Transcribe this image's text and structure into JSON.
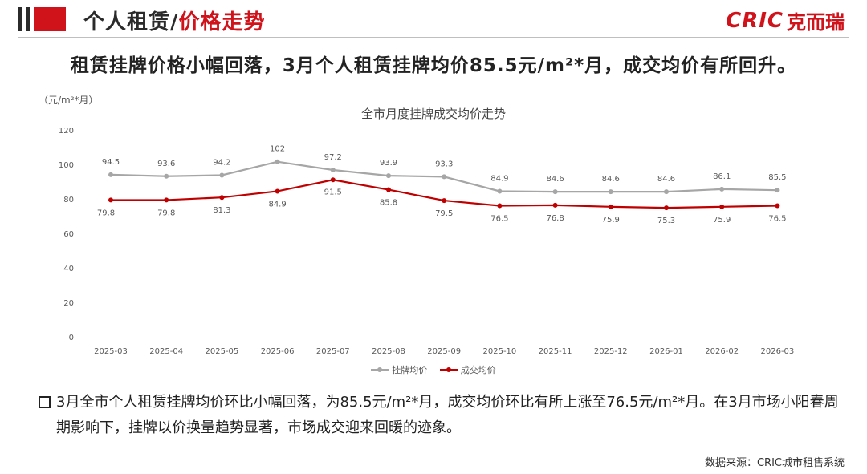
{
  "header": {
    "title_prefix": "个人租赁/",
    "title_highlight": "价格走势",
    "logo_en": "CRIC",
    "logo_zh": "克而瑞"
  },
  "headline": "租赁挂牌价格小幅回落，3月个人租赁挂牌均价85.5元/m²*月，成交均价有所回升。",
  "note": "3月全市个人租赁挂牌均价环比小幅回落，为85.5元/m²*月，成交均价环比有所上涨至76.5元/m²*月。在3月市场小阳春周期影响下，挂牌以价换量趋势显著，市场成交迎来回暖的迹象。",
  "source": "数据来源：CRIC城市租售系统",
  "colors": {
    "accent": "#d0121b",
    "listing": "#a6a6a6",
    "deal": "#c00000"
  },
  "chart_data": {
    "type": "line",
    "title": "全市月度挂牌成交均价走势",
    "unit_label": "（元/m²*月）",
    "xlabel": "",
    "ylabel": "",
    "ylim": [
      0,
      120
    ],
    "yticks": [
      "0",
      "20",
      "40",
      "60",
      "80",
      "100",
      "120"
    ],
    "grid": false,
    "legend_position": "bottom",
    "categories": [
      "2025-03",
      "2025-04",
      "2025-05",
      "2025-06",
      "2025-07",
      "2025-08",
      "2025-09",
      "2025-10",
      "2025-11",
      "2025-12",
      "2026-01",
      "2026-02",
      "2026-03"
    ],
    "series": [
      {
        "name": "挂牌均价",
        "values": [
          94.5,
          93.6,
          94.2,
          102,
          97.2,
          93.9,
          93.3,
          84.9,
          84.6,
          84.6,
          84.6,
          86.1,
          85.5
        ],
        "labels": [
          "94.5",
          "93.6",
          "94.2",
          "102",
          "97.2",
          "93.9",
          "93.3",
          "84.9",
          "84.6",
          "84.6",
          "84.6",
          "86.1",
          "85.5"
        ]
      },
      {
        "name": "成交均价",
        "values": [
          79.8,
          79.8,
          81.3,
          84.9,
          91.5,
          85.8,
          79.5,
          76.5,
          76.8,
          75.9,
          75.3,
          75.9,
          76.5
        ],
        "labels": [
          "79.8",
          "79.8",
          "81.3",
          "84.9",
          "91.5",
          "85.8",
          "79.5",
          "76.5",
          "76.8",
          "75.9",
          "75.3",
          "75.9",
          "76.5"
        ]
      }
    ]
  }
}
